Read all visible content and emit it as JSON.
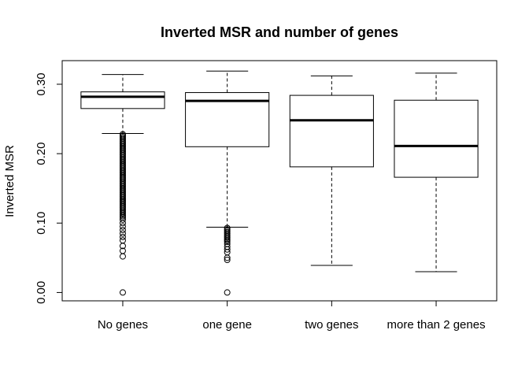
{
  "chart_data": {
    "type": "boxplot",
    "title": "Inverted MSR and number of genes",
    "xlabel": "",
    "ylabel": "Inverted MSR",
    "ylim": [
      -0.012,
      0.334
    ],
    "yticks": [
      0.0,
      0.1,
      0.2,
      0.3
    ],
    "ytick_labels": [
      "0.00",
      "0.10",
      "0.20",
      "0.30"
    ],
    "categories": [
      "No genes",
      "one gene",
      "two genes",
      "more than 2 genes"
    ],
    "boxes": [
      {
        "category": "No genes",
        "whisker_low": 0.229,
        "q1": 0.265,
        "median": 0.282,
        "q3": 0.289,
        "whisker_high": 0.314,
        "outliers": [
          0.228,
          0.226,
          0.224,
          0.222,
          0.22,
          0.218,
          0.216,
          0.214,
          0.212,
          0.21,
          0.208,
          0.206,
          0.204,
          0.202,
          0.2,
          0.198,
          0.196,
          0.194,
          0.192,
          0.19,
          0.188,
          0.186,
          0.184,
          0.182,
          0.18,
          0.178,
          0.176,
          0.174,
          0.172,
          0.17,
          0.168,
          0.166,
          0.164,
          0.162,
          0.16,
          0.158,
          0.156,
          0.154,
          0.152,
          0.15,
          0.148,
          0.146,
          0.144,
          0.142,
          0.14,
          0.138,
          0.136,
          0.134,
          0.132,
          0.13,
          0.128,
          0.126,
          0.124,
          0.122,
          0.12,
          0.118,
          0.116,
          0.114,
          0.112,
          0.11,
          0.108,
          0.105,
          0.1,
          0.095,
          0.09,
          0.085,
          0.08,
          0.075,
          0.067,
          0.06,
          0.052,
          0.0
        ]
      },
      {
        "category": "one gene",
        "whisker_low": 0.094,
        "q1": 0.21,
        "median": 0.276,
        "q3": 0.288,
        "whisker_high": 0.319,
        "outliers": [
          0.093,
          0.091,
          0.089,
          0.087,
          0.085,
          0.083,
          0.081,
          0.079,
          0.077,
          0.075,
          0.073,
          0.07,
          0.066,
          0.062,
          0.058,
          0.05,
          0.047,
          0.0
        ]
      },
      {
        "category": "two genes",
        "whisker_low": 0.039,
        "q1": 0.181,
        "median": 0.248,
        "q3": 0.284,
        "whisker_high": 0.312,
        "outliers": []
      },
      {
        "category": "more than 2 genes",
        "whisker_low": 0.03,
        "q1": 0.166,
        "median": 0.211,
        "q3": 0.277,
        "whisker_high": 0.316,
        "outliers": []
      }
    ],
    "grid": false,
    "legend": "none",
    "colors": {
      "stroke": "#000000",
      "fill": "#ffffff"
    }
  }
}
